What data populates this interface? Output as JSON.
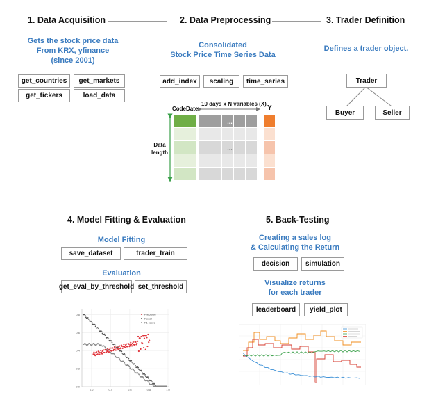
{
  "acquisition": {
    "title": "1. Data Acquisition",
    "description": [
      "Gets the stock price data",
      "From KRX, yfinance",
      "(since 2001)"
    ],
    "functions": [
      "get_countries",
      "get_markets",
      "get_tickers",
      "load_data"
    ]
  },
  "preprocessing": {
    "title": "2. Data Preprocessing",
    "description": [
      "Consolidated",
      "Stock Price Time Series Data"
    ],
    "functions": [
      "add_index",
      "scaling",
      "time_series"
    ],
    "matrix": {
      "col_code": "Code",
      "col_date": "Date",
      "variables_label": "10 days x N variables (X)",
      "y_label": "Y",
      "row_label": [
        "Data",
        "length"
      ],
      "ellipsis": "..."
    }
  },
  "trader": {
    "title": "3. Trader Definition",
    "description": "Defines a trader object.",
    "root": "Trader",
    "children": [
      "Buyer",
      "Seller"
    ]
  },
  "model": {
    "title": "4. Model Fitting & Evaluation",
    "fitting_label": "Model Fitting",
    "fitting_functions": [
      "save_dataset",
      "trader_train"
    ],
    "evaluation_label": "Evaluation",
    "evaluation_functions": [
      "get_eval_by_threshold",
      "set_threshold"
    ],
    "plot_legend": [
      "Precision",
      "Recall",
      "F1 score"
    ],
    "colors": {
      "precision": "#e0343b",
      "recall": "#555555",
      "f1": "#888888"
    }
  },
  "backtest": {
    "title": "5. Back-Testing",
    "log_label": [
      "Creating a sales log",
      "& Calculating the Return"
    ],
    "log_functions": [
      "decision",
      "simulation"
    ],
    "visualize_label": [
      "Visualize returns",
      "for each trader"
    ],
    "visualize_functions": [
      "leaderboard",
      "yield_plot"
    ],
    "colors": {
      "blue": "#3a8fd6",
      "orange": "#f08c1c",
      "green": "#3aa04a",
      "red": "#d63a2e"
    }
  }
}
